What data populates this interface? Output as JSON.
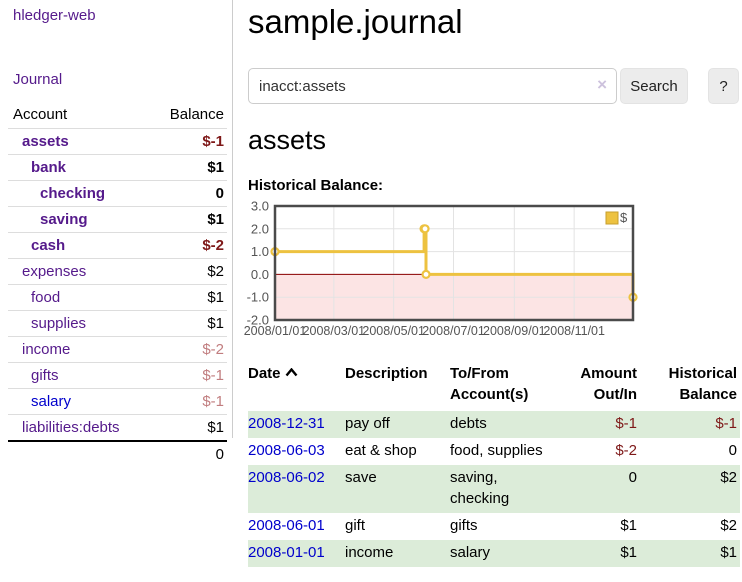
{
  "colors": {
    "link-purple": "#551a8b",
    "link-blue": "#0000cc",
    "neg-strong": "#7e1818",
    "neg-soft": "#c17d7f",
    "row-green": "#dcecd9",
    "button-bg": "#ececec",
    "chart-line": "#edc240",
    "chart-fill-neg": "#fce4e4",
    "chart-zero": "#8b0000",
    "chart-grid": "#e3e3e3",
    "chart-border": "#4a4a4a",
    "chart-text": "#545454"
  },
  "sidebar": {
    "app_title": "hledger-web",
    "nav_journal": "Journal",
    "table": {
      "headers": [
        "Account",
        "Balance"
      ],
      "accounts": [
        {
          "name": "assets",
          "indent": 1,
          "bold": true,
          "balance": "$-1",
          "tone": "neg-strong"
        },
        {
          "name": "bank",
          "indent": 2,
          "bold": true,
          "balance": "$1",
          "tone": "pos"
        },
        {
          "name": "checking",
          "indent": 3,
          "bold": true,
          "balance": "0",
          "tone": "pos"
        },
        {
          "name": "saving",
          "indent": 3,
          "bold": true,
          "balance": "$1",
          "tone": "pos"
        },
        {
          "name": "cash",
          "indent": 2,
          "bold": true,
          "balance": "$-2",
          "tone": "neg-strong"
        },
        {
          "name": "expenses",
          "indent": 1,
          "bold": false,
          "balance": "$2",
          "tone": "pos"
        },
        {
          "name": "food",
          "indent": 2,
          "bold": false,
          "balance": "$1",
          "tone": "pos"
        },
        {
          "name": "supplies",
          "indent": 2,
          "bold": false,
          "balance": "$1",
          "tone": "pos"
        },
        {
          "name": "income",
          "indent": 1,
          "bold": false,
          "balance": "$-2",
          "tone": "neg-soft"
        },
        {
          "name": "gifts",
          "indent": 2,
          "bold": false,
          "balance": "$-1",
          "tone": "neg-soft"
        },
        {
          "name": "salary",
          "indent": 2,
          "bold": false,
          "balance": "$-1",
          "tone": "neg-soft",
          "link": "blue"
        },
        {
          "name": "liabilities:debts",
          "indent": 1,
          "bold": false,
          "balance": "$1",
          "tone": "pos"
        }
      ],
      "total": "0"
    }
  },
  "main": {
    "title": "sample.journal",
    "search": {
      "value": "inacct:assets",
      "clear_icon": "×",
      "clear_icon_name": "clear-search-icon",
      "button_label": "Search",
      "help_label": "?"
    },
    "account_heading": "assets",
    "chart_heading": "Historical Balance:"
  },
  "chart_data": {
    "type": "line",
    "step": true,
    "title": "Historical Balance of assets",
    "series": [
      {
        "name": "$",
        "point_dates": [
          [
            "2008-01-01",
            1
          ],
          [
            "2008-06-01",
            2
          ],
          [
            "2008-06-02",
            2
          ],
          [
            "2008-06-03",
            0
          ],
          [
            "2008-12-31",
            -1
          ]
        ],
        "points_days": [
          [
            0,
            1
          ],
          [
            152,
            2
          ],
          [
            153,
            2
          ],
          [
            154,
            0
          ],
          [
            365,
            -1
          ]
        ]
      }
    ],
    "x_ticks": [
      {
        "pos": 0,
        "label": "2008/01/01"
      },
      {
        "pos": 60,
        "label": "2008/03/01"
      },
      {
        "pos": 121,
        "label": "2008/05/01"
      },
      {
        "pos": 182,
        "label": "2008/07/01"
      },
      {
        "pos": 244,
        "label": "2008/09/01"
      },
      {
        "pos": 305,
        "label": "2008/11/01"
      }
    ],
    "y_ticks": [
      {
        "pos": 3,
        "label": "3.0"
      },
      {
        "pos": 2,
        "label": "2.0"
      },
      {
        "pos": 1,
        "label": "1.0"
      },
      {
        "pos": 0,
        "label": "0.0"
      },
      {
        "pos": -1,
        "label": "-1.0"
      },
      {
        "pos": -2,
        "label": "-2.0"
      }
    ],
    "xlim": [
      0,
      365
    ],
    "ylim": [
      -2,
      3
    ],
    "grid": true,
    "legend_position": "top-right",
    "negative_region_below": 0
  },
  "transactions": {
    "headers": {
      "date": "Date",
      "sort_icon_name": "sort-ascending-icon",
      "description": "Description",
      "accounts": [
        "To/From",
        "Account(s)"
      ],
      "amount": [
        "Amount",
        "Out/In"
      ],
      "balance": [
        "Historical",
        "Balance"
      ]
    },
    "rows": [
      {
        "date": "2008-12-31",
        "description": "pay off",
        "accounts": "debts",
        "amount": "$-1",
        "amount_tone": "neg",
        "balance": "$-1",
        "balance_tone": "neg"
      },
      {
        "date": "2008-06-03",
        "description": "eat & shop",
        "accounts": "food, supplies",
        "amount": "$-2",
        "amount_tone": "neg",
        "balance": "0",
        "balance_tone": "pos"
      },
      {
        "date": "2008-06-02",
        "description": "save",
        "accounts": "saving, checking",
        "amount": "0",
        "amount_tone": "pos",
        "balance": "$2",
        "balance_tone": "pos"
      },
      {
        "date": "2008-06-01",
        "description": "gift",
        "accounts": "gifts",
        "amount": "$1",
        "amount_tone": "pos",
        "balance": "$2",
        "balance_tone": "pos"
      },
      {
        "date": "2008-01-01",
        "description": "income",
        "accounts": "salary",
        "amount": "$1",
        "amount_tone": "pos",
        "balance": "$1",
        "balance_tone": "pos"
      }
    ]
  }
}
